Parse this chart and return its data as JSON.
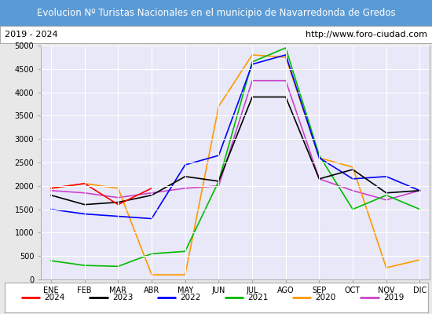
{
  "title": "Evolucion Nº Turistas Nacionales en el municipio de Navarredonda de Gredos",
  "subtitle_left": "2019 - 2024",
  "subtitle_right": "http://www.foro-ciudad.com",
  "title_bg_color": "#5b9bd5",
  "title_text_color": "#ffffff",
  "months": [
    "ENE",
    "FEB",
    "MAR",
    "ABR",
    "MAY",
    "JUN",
    "JUL",
    "AGO",
    "SEP",
    "OCT",
    "NOV",
    "DIC"
  ],
  "ylim": [
    0,
    5000
  ],
  "yticks": [
    0,
    500,
    1000,
    1500,
    2000,
    2500,
    3000,
    3500,
    4000,
    4500,
    5000
  ],
  "series": {
    "2024": {
      "color": "#ff0000",
      "data": [
        1950,
        2050,
        1600,
        1950,
        null,
        null,
        null,
        null,
        null,
        null,
        null,
        null
      ]
    },
    "2023": {
      "color": "#000000",
      "data": [
        1800,
        1600,
        1650,
        1800,
        2200,
        2100,
        3900,
        3900,
        2150,
        2350,
        1850,
        1900
      ]
    },
    "2022": {
      "color": "#0000ff",
      "data": [
        1500,
        1400,
        1350,
        1300,
        2450,
        2650,
        4600,
        4800,
        2600,
        2150,
        2200,
        1900
      ]
    },
    "2021": {
      "color": "#00bb00",
      "data": [
        400,
        300,
        280,
        550,
        600,
        2100,
        4650,
        4950,
        2650,
        1500,
        1800,
        1500
      ]
    },
    "2020": {
      "color": "#ff9900",
      "data": [
        1950,
        2050,
        1950,
        100,
        100,
        3700,
        4800,
        4750,
        2600,
        2400,
        250,
        420
      ]
    },
    "2019": {
      "color": "#cc44cc",
      "data": [
        1900,
        1850,
        1750,
        1850,
        1950,
        2000,
        4250,
        4250,
        2150,
        1900,
        1700,
        1900
      ]
    }
  },
  "legend_order": [
    "2024",
    "2023",
    "2022",
    "2021",
    "2020",
    "2019"
  ],
  "bg_color": "#e8e8e8",
  "plot_bg_color": "#e8e8f8",
  "grid_color": "#ffffff",
  "border_color": "#aaaaaa"
}
